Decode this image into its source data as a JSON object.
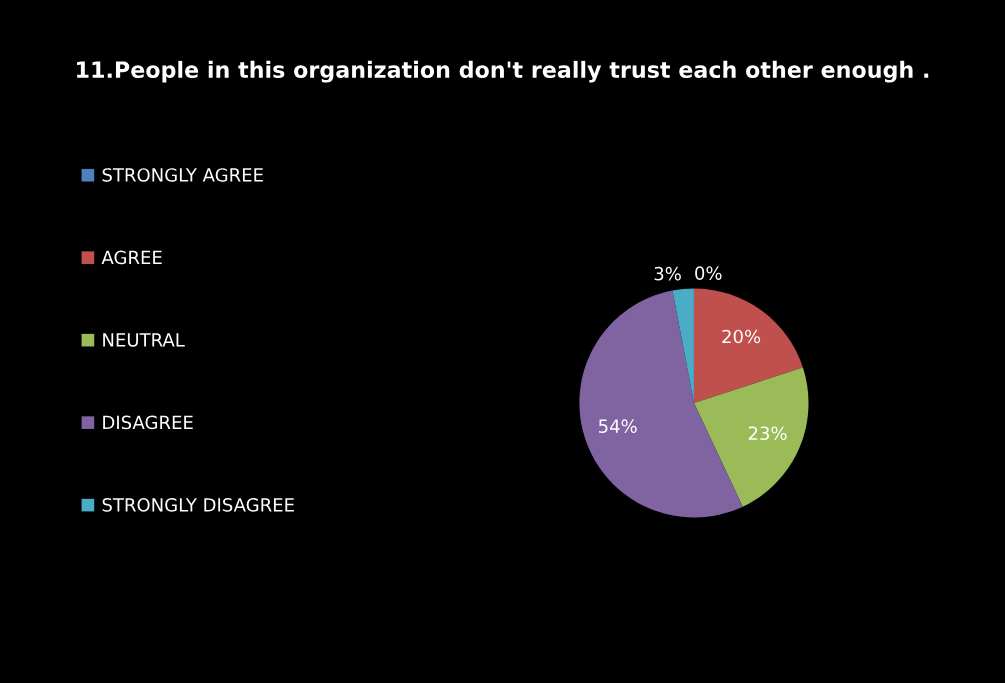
{
  "chart_data": {
    "type": "pie",
    "title": "11.People in this organization don't really trust each other enough .",
    "categories": [
      "STRONGLY AGREE",
      "AGREE",
      "NEUTRAL",
      "DISAGREE",
      "STRONGLY DISAGREE"
    ],
    "values": [
      0,
      20,
      23,
      54,
      3
    ],
    "colors": [
      "#4f81bd",
      "#c0504d",
      "#9bbb59",
      "#8064a2",
      "#4bacc6"
    ],
    "value_labels": [
      "0%",
      "20%",
      "23%",
      "54%",
      "3%"
    ],
    "legend": "left"
  }
}
